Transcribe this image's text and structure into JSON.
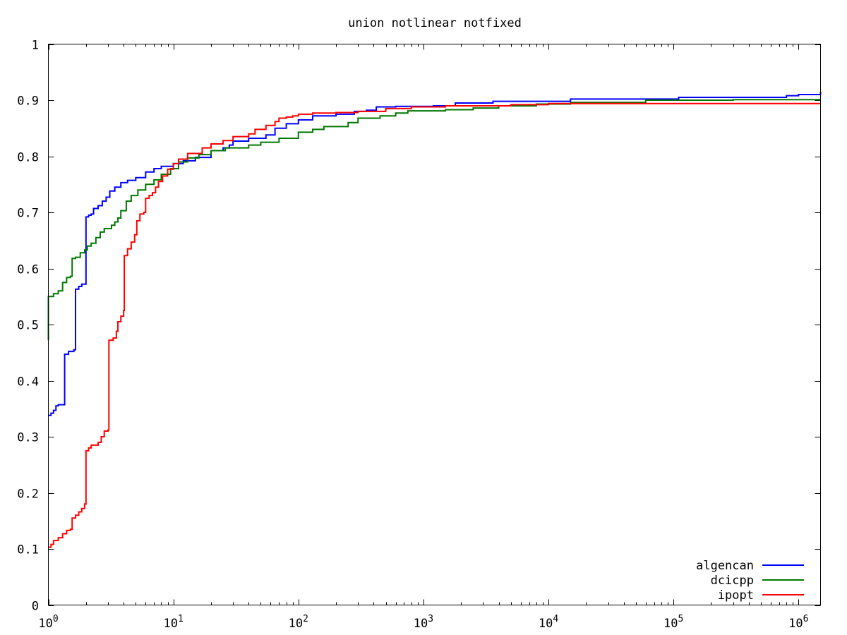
{
  "chart_data": {
    "type": "line",
    "title": "union notlinear notfixed",
    "xlabel": "",
    "ylabel": "",
    "x_scale": "log",
    "xlim": [
      1,
      1500000
    ],
    "ylim": [
      0,
      1
    ],
    "grid": false,
    "legend_position": "bottom-right",
    "x_ticks": [
      {
        "value": 1,
        "base": "10",
        "exp": "0"
      },
      {
        "value": 10,
        "base": "10",
        "exp": "1"
      },
      {
        "value": 100,
        "base": "10",
        "exp": "2"
      },
      {
        "value": 1000,
        "base": "10",
        "exp": "3"
      },
      {
        "value": 10000,
        "base": "10",
        "exp": "4"
      },
      {
        "value": 100000,
        "base": "10",
        "exp": "5"
      },
      {
        "value": 1000000,
        "base": "10",
        "exp": "6"
      }
    ],
    "y_ticks": [
      {
        "value": 0,
        "label": "0"
      },
      {
        "value": 0.1,
        "label": "0.1"
      },
      {
        "value": 0.2,
        "label": "0.2"
      },
      {
        "value": 0.3,
        "label": "0.3"
      },
      {
        "value": 0.4,
        "label": "0.4"
      },
      {
        "value": 0.5,
        "label": "0.5"
      },
      {
        "value": 0.6,
        "label": "0.6"
      },
      {
        "value": 0.7,
        "label": "0.7"
      },
      {
        "value": 0.8,
        "label": "0.8"
      },
      {
        "value": 0.9,
        "label": "0.9"
      },
      {
        "value": 1,
        "label": "1"
      }
    ],
    "series": [
      {
        "name": "algencan",
        "color": "#0000ff",
        "points": [
          [
            1,
            0.338
          ],
          [
            1.05,
            0.342
          ],
          [
            1.1,
            0.347
          ],
          [
            1.15,
            0.355
          ],
          [
            1.2,
            0.357
          ],
          [
            1.35,
            0.357
          ],
          [
            1.35,
            0.447
          ],
          [
            1.45,
            0.452
          ],
          [
            1.6,
            0.455
          ],
          [
            1.65,
            0.458
          ],
          [
            1.65,
            0.563
          ],
          [
            1.75,
            0.568
          ],
          [
            1.85,
            0.572
          ],
          [
            2,
            0.572
          ],
          [
            2,
            0.692
          ],
          [
            2.1,
            0.695
          ],
          [
            2.2,
            0.697
          ],
          [
            2.3,
            0.707
          ],
          [
            2.5,
            0.712
          ],
          [
            2.7,
            0.72
          ],
          [
            2.9,
            0.727
          ],
          [
            3.1,
            0.738
          ],
          [
            3.4,
            0.745
          ],
          [
            3.8,
            0.753
          ],
          [
            4.3,
            0.757
          ],
          [
            5,
            0.762
          ],
          [
            6,
            0.772
          ],
          [
            7,
            0.778
          ],
          [
            8,
            0.782
          ],
          [
            10,
            0.787
          ],
          [
            12,
            0.792
          ],
          [
            15,
            0.798
          ],
          [
            20,
            0.81
          ],
          [
            25,
            0.815
          ],
          [
            28,
            0.82
          ],
          [
            30,
            0.827
          ],
          [
            40,
            0.832
          ],
          [
            55,
            0.838
          ],
          [
            65,
            0.85
          ],
          [
            80,
            0.858
          ],
          [
            100,
            0.865
          ],
          [
            130,
            0.872
          ],
          [
            200,
            0.875
          ],
          [
            280,
            0.88
          ],
          [
            350,
            0.882
          ],
          [
            420,
            0.888
          ],
          [
            600,
            0.889
          ],
          [
            1200,
            0.89
          ],
          [
            1800,
            0.895
          ],
          [
            3500,
            0.895
          ],
          [
            3600,
            0.898
          ],
          [
            14000,
            0.898
          ],
          [
            15000,
            0.902
          ],
          [
            100000,
            0.902
          ],
          [
            110000,
            0.905
          ],
          [
            800000,
            0.908
          ],
          [
            1000000,
            0.91
          ],
          [
            1500000,
            0.915
          ]
        ]
      },
      {
        "name": "dcicpp",
        "color": "#007700",
        "points": [
          [
            1,
            0.472
          ],
          [
            1,
            0.55
          ],
          [
            1.1,
            0.555
          ],
          [
            1.2,
            0.56
          ],
          [
            1.3,
            0.575
          ],
          [
            1.4,
            0.584
          ],
          [
            1.5,
            0.586
          ],
          [
            1.55,
            0.586
          ],
          [
            1.55,
            0.618
          ],
          [
            1.65,
            0.62
          ],
          [
            1.8,
            0.628
          ],
          [
            1.95,
            0.633
          ],
          [
            2.05,
            0.64
          ],
          [
            2.2,
            0.645
          ],
          [
            2.4,
            0.655
          ],
          [
            2.6,
            0.665
          ],
          [
            2.8,
            0.671
          ],
          [
            3.2,
            0.677
          ],
          [
            3.4,
            0.683
          ],
          [
            3.6,
            0.69
          ],
          [
            3.8,
            0.703
          ],
          [
            4.2,
            0.72
          ],
          [
            4.6,
            0.73
          ],
          [
            5.2,
            0.74
          ],
          [
            6,
            0.75
          ],
          [
            7,
            0.758
          ],
          [
            8,
            0.768
          ],
          [
            9.5,
            0.778
          ],
          [
            11,
            0.79
          ],
          [
            13,
            0.797
          ],
          [
            16,
            0.803
          ],
          [
            20,
            0.81
          ],
          [
            26,
            0.815
          ],
          [
            40,
            0.82
          ],
          [
            50,
            0.825
          ],
          [
            70,
            0.832
          ],
          [
            100,
            0.843
          ],
          [
            130,
            0.848
          ],
          [
            160,
            0.853
          ],
          [
            200,
            0.853
          ],
          [
            250,
            0.86
          ],
          [
            300,
            0.868
          ],
          [
            450,
            0.872
          ],
          [
            600,
            0.877
          ],
          [
            750,
            0.881
          ],
          [
            1000,
            0.881
          ],
          [
            1500,
            0.883
          ],
          [
            2500,
            0.886
          ],
          [
            4000,
            0.89
          ],
          [
            8000,
            0.893
          ],
          [
            15000,
            0.896
          ],
          [
            60000,
            0.9
          ],
          [
            300000,
            0.901
          ],
          [
            1500000,
            0.901
          ]
        ]
      },
      {
        "name": "ipopt",
        "color": "#ff0000",
        "points": [
          [
            1,
            0.103
          ],
          [
            1.05,
            0.108
          ],
          [
            1.1,
            0.115
          ],
          [
            1.2,
            0.12
          ],
          [
            1.3,
            0.127
          ],
          [
            1.4,
            0.133
          ],
          [
            1.5,
            0.135
          ],
          [
            1.55,
            0.135
          ],
          [
            1.55,
            0.155
          ],
          [
            1.65,
            0.16
          ],
          [
            1.75,
            0.166
          ],
          [
            1.85,
            0.172
          ],
          [
            1.95,
            0.18
          ],
          [
            2,
            0.18
          ],
          [
            2,
            0.275
          ],
          [
            2.1,
            0.28
          ],
          [
            2.2,
            0.285
          ],
          [
            2.5,
            0.29
          ],
          [
            2.65,
            0.3
          ],
          [
            2.8,
            0.31
          ],
          [
            3,
            0.312
          ],
          [
            3.05,
            0.312
          ],
          [
            3.05,
            0.472
          ],
          [
            3.3,
            0.476
          ],
          [
            3.5,
            0.488
          ],
          [
            3.6,
            0.505
          ],
          [
            3.8,
            0.515
          ],
          [
            4,
            0.525
          ],
          [
            4.05,
            0.525
          ],
          [
            4.05,
            0.623
          ],
          [
            4.3,
            0.635
          ],
          [
            4.6,
            0.647
          ],
          [
            4.9,
            0.66
          ],
          [
            5.1,
            0.685
          ],
          [
            5.4,
            0.697
          ],
          [
            5.8,
            0.7
          ],
          [
            6,
            0.725
          ],
          [
            6.4,
            0.73
          ],
          [
            6.8,
            0.735
          ],
          [
            7.2,
            0.745
          ],
          [
            7.6,
            0.755
          ],
          [
            8.2,
            0.765
          ],
          [
            9,
            0.777
          ],
          [
            10,
            0.787
          ],
          [
            11,
            0.795
          ],
          [
            13,
            0.805
          ],
          [
            17,
            0.815
          ],
          [
            20,
            0.822
          ],
          [
            25,
            0.828
          ],
          [
            30,
            0.835
          ],
          [
            40,
            0.84
          ],
          [
            45,
            0.848
          ],
          [
            55,
            0.855
          ],
          [
            65,
            0.862
          ],
          [
            70,
            0.868
          ],
          [
            80,
            0.87
          ],
          [
            90,
            0.872
          ],
          [
            100,
            0.875
          ],
          [
            130,
            0.877
          ],
          [
            200,
            0.878
          ],
          [
            300,
            0.88
          ],
          [
            500,
            0.885
          ],
          [
            800,
            0.888
          ],
          [
            1500,
            0.89
          ],
          [
            5000,
            0.892
          ],
          [
            10000,
            0.894
          ],
          [
            1500000,
            0.894
          ]
        ]
      }
    ]
  }
}
